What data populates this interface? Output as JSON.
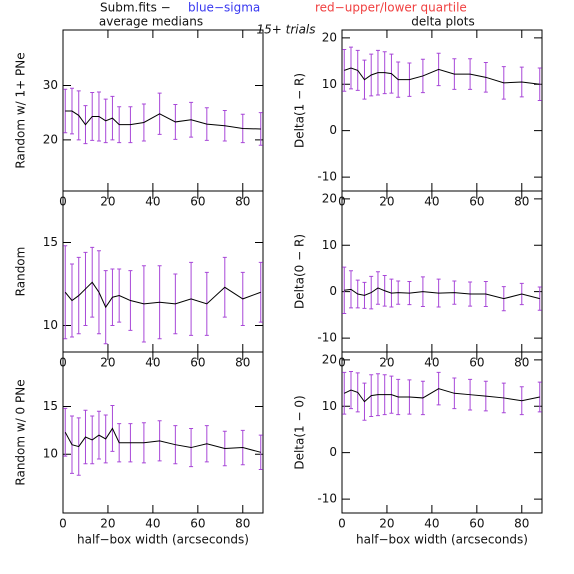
{
  "header": {
    "file": "Subm.fits  −",
    "blue": "blue−sigma",
    "red": "red−upper/lower quartile",
    "center": "15+ trials"
  },
  "chart_data": [
    {
      "type": "line",
      "title": "average medians",
      "ylabel": "Random w/ 1+ PNe",
      "color": "#000000",
      "error_color": "#a848d8",
      "x": [
        1,
        4,
        7,
        10,
        13,
        16,
        19,
        22,
        25,
        30,
        36,
        43,
        50,
        57,
        64,
        72,
        80,
        88
      ],
      "values": [
        25.3,
        25.3,
        24.5,
        22.8,
        24.3,
        24.3,
        23.5,
        24,
        22.8,
        22.8,
        23.2,
        24.8,
        23.3,
        23.7,
        22.9,
        22.6,
        22.1,
        22
      ],
      "errors": [
        4,
        4.2,
        4.5,
        3.5,
        4.4,
        4.5,
        4,
        4,
        3.3,
        3.3,
        3.4,
        3.8,
        3.2,
        3.2,
        3,
        2.8,
        2.6,
        3
      ],
      "xlim": [
        0,
        89
      ],
      "ylim": [
        10.6,
        40.2
      ],
      "xticks": [
        0,
        20,
        40,
        60,
        80
      ],
      "yticks": [
        20,
        30
      ]
    },
    {
      "type": "line",
      "title": "delta plots",
      "ylabel": "Delta(1 − R)",
      "color": "#000000",
      "error_color": "#a848d8",
      "x": [
        1,
        4,
        7,
        10,
        13,
        16,
        19,
        22,
        25,
        30,
        36,
        43,
        50,
        57,
        64,
        72,
        80,
        88
      ],
      "values": [
        13,
        13.5,
        13,
        11,
        12,
        12.5,
        12.5,
        12.3,
        11,
        11,
        11.8,
        13.2,
        12.2,
        12.2,
        11.5,
        10.3,
        10.5,
        10
      ],
      "errors": [
        4.5,
        4.5,
        4.3,
        4.2,
        4.5,
        4.8,
        4.5,
        4.2,
        3.8,
        3.6,
        3.6,
        3.5,
        3.3,
        3.3,
        3.2,
        3.5,
        3.2,
        3.5
      ],
      "xlim": [
        0,
        89
      ],
      "ylim": [
        -13,
        21.7
      ],
      "xticks": [
        0,
        20,
        40,
        60,
        80
      ],
      "yticks": [
        -10,
        0,
        10,
        20
      ]
    },
    {
      "type": "line",
      "ylabel": "Random",
      "color": "#000000",
      "error_color": "#a848d8",
      "x": [
        1,
        4,
        7,
        10,
        13,
        16,
        19,
        22,
        25,
        30,
        36,
        43,
        50,
        57,
        64,
        72,
        80,
        88
      ],
      "values": [
        12,
        11.5,
        11.8,
        12.2,
        12.6,
        12,
        11.1,
        11.7,
        11.8,
        11.5,
        11.3,
        11.4,
        11.3,
        11.6,
        11.3,
        12.3,
        11.6,
        12
      ],
      "errors": [
        2.8,
        2.2,
        2.3,
        2.2,
        2.1,
        2.5,
        2.2,
        1.7,
        1.6,
        1.8,
        2.3,
        2.2,
        1.8,
        2.2,
        1.9,
        1.8,
        1.6,
        1.8
      ],
      "xlim": [
        0,
        89
      ],
      "ylim": [
        8.4,
        18.1
      ],
      "xticks": [
        0,
        20,
        40,
        60,
        80
      ],
      "yticks": [
        10,
        15
      ]
    },
    {
      "type": "line",
      "ylabel": "Delta(0 − R)",
      "color": "#000000",
      "error_color": "#a848d8",
      "x": [
        1,
        4,
        7,
        10,
        13,
        16,
        19,
        22,
        25,
        30,
        36,
        43,
        50,
        57,
        64,
        72,
        80,
        88
      ],
      "values": [
        0.3,
        0.5,
        -0.5,
        -0.8,
        -0.2,
        0.8,
        0.2,
        -0.3,
        -0.2,
        -0.3,
        0,
        -0.3,
        -0.2,
        -0.5,
        -0.5,
        -1.5,
        -0.5,
        -1.5
      ],
      "errors": [
        5,
        4,
        3,
        2.8,
        3.5,
        3.5,
        3.3,
        3,
        2.5,
        2.5,
        3.2,
        3,
        2.5,
        2.6,
        2.7,
        2.6,
        2.3,
        2.5
      ],
      "xlim": [
        0,
        89
      ],
      "ylim": [
        -13,
        21.7
      ],
      "xticks": [
        0,
        20,
        40,
        60,
        80
      ],
      "yticks": [
        -10,
        0,
        10,
        20
      ]
    },
    {
      "type": "line",
      "ylabel": "Random w/ 0 PNe",
      "xlabel": "half−box width (arcseconds)",
      "color": "#000000",
      "error_color": "#a848d8",
      "x": [
        1,
        4,
        7,
        10,
        13,
        16,
        19,
        22,
        25,
        30,
        36,
        43,
        50,
        57,
        64,
        72,
        80,
        88
      ],
      "values": [
        12.3,
        11,
        10.8,
        11.8,
        11.5,
        12,
        11.6,
        12.7,
        11.2,
        11.2,
        11.2,
        11.4,
        11,
        10.7,
        11.1,
        10.6,
        10.7,
        10.2
      ],
      "errors": [
        2.5,
        3,
        3,
        2.8,
        2.5,
        2.5,
        2.5,
        2.4,
        2,
        2,
        2.1,
        2.1,
        2,
        2,
        1.9,
        1.8,
        1.8,
        1.8
      ],
      "xlim": [
        0,
        89
      ],
      "ylim": [
        3.85,
        20.7
      ],
      "xticks": [
        0,
        20,
        40,
        60,
        80
      ],
      "yticks": [
        10,
        15
      ]
    },
    {
      "type": "line",
      "ylabel": "Delta(1 − 0)",
      "xlabel": "half−box width (arcseconds)",
      "color": "#000000",
      "error_color": "#a848d8",
      "x": [
        1,
        4,
        7,
        10,
        13,
        16,
        19,
        22,
        25,
        30,
        36,
        43,
        50,
        57,
        64,
        72,
        80,
        88
      ],
      "values": [
        12.8,
        13.5,
        13,
        11,
        12.3,
        12.5,
        12.5,
        12.5,
        12,
        12,
        11.8,
        13.8,
        12.8,
        12.5,
        12.2,
        11.8,
        11.2,
        12
      ],
      "errors": [
        4.5,
        4,
        4.2,
        4,
        4.5,
        4.5,
        4.3,
        4,
        3.8,
        3.7,
        3.6,
        3.5,
        3.3,
        3.3,
        3.2,
        3.2,
        3,
        3.2
      ],
      "xlim": [
        0,
        89
      ],
      "ylim": [
        -13,
        21.7
      ],
      "xticks": [
        0,
        20,
        40,
        60,
        80
      ],
      "yticks": [
        -10,
        0,
        10,
        20
      ]
    }
  ]
}
